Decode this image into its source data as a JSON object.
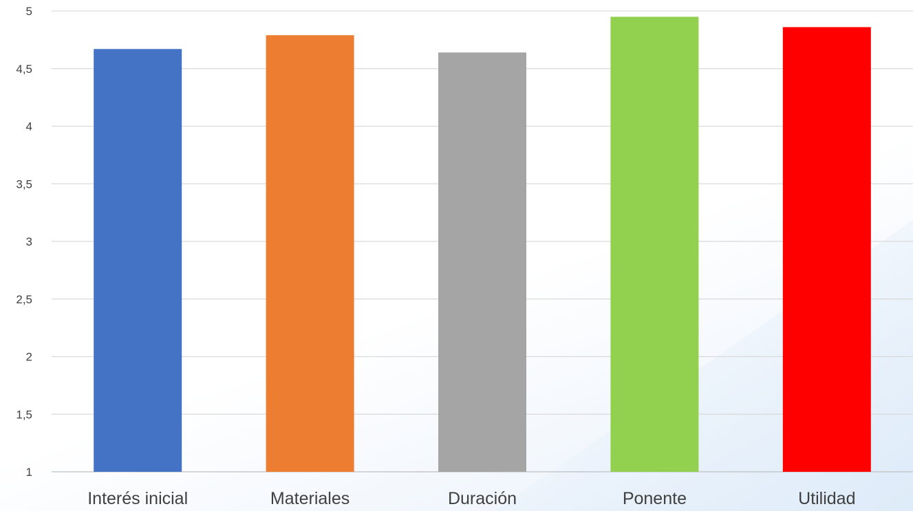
{
  "chart_data": {
    "type": "bar",
    "title": "",
    "xlabel": "",
    "ylabel": "",
    "categories": [
      "Interés inicial",
      "Materiales",
      "Duración",
      "Ponente",
      "Utilidad"
    ],
    "values": [
      4.67,
      4.79,
      4.64,
      4.95,
      4.86
    ],
    "colors": [
      "#4472C4",
      "#ED7D31",
      "#A5A5A5",
      "#92D050",
      "#FF0000"
    ],
    "ylim": [
      1,
      5
    ],
    "yticks": [
      1,
      1.5,
      2,
      2.5,
      3,
      3.5,
      4,
      4.5,
      5
    ],
    "ytick_labels": [
      "1",
      "1,5",
      "2",
      "2,5",
      "3",
      "3,5",
      "4",
      "4,5",
      "5"
    ],
    "grid": true,
    "legend": "none"
  }
}
